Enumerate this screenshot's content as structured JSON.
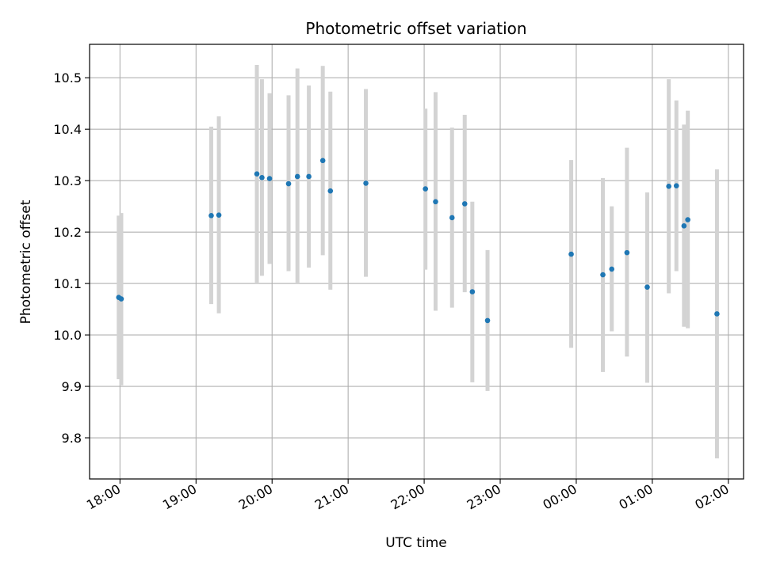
{
  "chart_data": {
    "type": "scatter",
    "title": "Photometric offset variation",
    "xlabel": "UTC time",
    "ylabel": "Photometric offset",
    "x_tick_labels": [
      "18:00",
      "19:00",
      "20:00",
      "21:00",
      "22:00",
      "23:00",
      "00:00",
      "01:00",
      "02:00"
    ],
    "y_tick_labels": [
      "9.8",
      "9.9",
      "10.0",
      "10.1",
      "10.2",
      "10.3",
      "10.4",
      "10.5"
    ],
    "y_ticks": [
      9.8,
      9.9,
      10.0,
      10.1,
      10.2,
      10.3,
      10.4,
      10.5
    ],
    "xlim_hours": [
      17.6,
      26.2
    ],
    "ylim": [
      9.72,
      10.565
    ],
    "grid": true,
    "point_color": "#1f77b4",
    "errorbar_color": "#d3d3d3",
    "points": [
      {
        "t": "17:59",
        "y": 10.073,
        "lo": 9.914,
        "hi": 10.232
      },
      {
        "t": "18:01",
        "y": 10.07,
        "lo": 9.902,
        "hi": 10.237
      },
      {
        "t": "19:12",
        "y": 10.232,
        "lo": 10.06,
        "hi": 10.405
      },
      {
        "t": "19:18",
        "y": 10.233,
        "lo": 10.042,
        "hi": 10.425
      },
      {
        "t": "19:48",
        "y": 10.313,
        "lo": 10.1,
        "hi": 10.525
      },
      {
        "t": "19:52",
        "y": 10.306,
        "lo": 10.115,
        "hi": 10.497
      },
      {
        "t": "19:58",
        "y": 10.304,
        "lo": 10.138,
        "hi": 10.47
      },
      {
        "t": "20:13",
        "y": 10.294,
        "lo": 10.124,
        "hi": 10.466
      },
      {
        "t": "20:20",
        "y": 10.308,
        "lo": 10.1,
        "hi": 10.518
      },
      {
        "t": "20:29",
        "y": 10.308,
        "lo": 10.131,
        "hi": 10.485
      },
      {
        "t": "20:40",
        "y": 10.339,
        "lo": 10.155,
        "hi": 10.523
      },
      {
        "t": "20:46",
        "y": 10.28,
        "lo": 10.088,
        "hi": 10.473
      },
      {
        "t": "21:14",
        "y": 10.295,
        "lo": 10.113,
        "hi": 10.478
      },
      {
        "t": "22:01",
        "y": 10.284,
        "lo": 10.127,
        "hi": 10.44
      },
      {
        "t": "22:09",
        "y": 10.259,
        "lo": 10.047,
        "hi": 10.472
      },
      {
        "t": "22:22",
        "y": 10.228,
        "lo": 10.053,
        "hi": 10.403
      },
      {
        "t": "22:32",
        "y": 10.255,
        "lo": 10.083,
        "hi": 10.428
      },
      {
        "t": "22:38",
        "y": 10.084,
        "lo": 9.908,
        "hi": 10.259
      },
      {
        "t": "22:50",
        "y": 10.028,
        "lo": 9.891,
        "hi": 10.165
      },
      {
        "t": "23:56",
        "y": 10.157,
        "lo": 9.975,
        "hi": 10.34
      },
      {
        "t": "00:21",
        "y": 10.117,
        "lo": 9.928,
        "hi": 10.305
      },
      {
        "t": "00:28",
        "y": 10.128,
        "lo": 10.007,
        "hi": 10.25
      },
      {
        "t": "00:40",
        "y": 10.16,
        "lo": 9.958,
        "hi": 10.364
      },
      {
        "t": "00:56",
        "y": 10.093,
        "lo": 9.907,
        "hi": 10.277
      },
      {
        "t": "01:13",
        "y": 10.289,
        "lo": 10.081,
        "hi": 10.497
      },
      {
        "t": "01:19",
        "y": 10.29,
        "lo": 10.124,
        "hi": 10.456
      },
      {
        "t": "01:25",
        "y": 10.212,
        "lo": 10.016,
        "hi": 10.409
      },
      {
        "t": "01:28",
        "y": 10.224,
        "lo": 10.013,
        "hi": 10.436
      },
      {
        "t": "01:51",
        "y": 10.041,
        "lo": 9.76,
        "hi": 10.322
      }
    ]
  }
}
